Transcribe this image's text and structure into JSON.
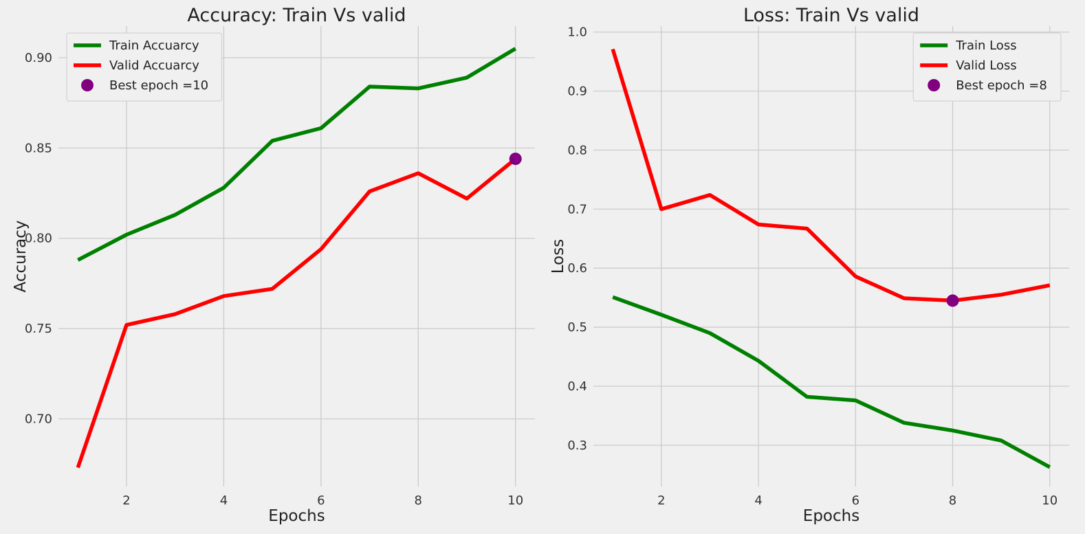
{
  "chart_data": [
    {
      "id": "accuracy",
      "type": "line",
      "title": "Accuracy: Train Vs valid",
      "xlabel": "Epochs",
      "ylabel": "Accuracy",
      "xlim": [
        0.6,
        10.4
      ],
      "ylim": [
        0.6625,
        0.9175
      ],
      "xticks": [
        2,
        4,
        6,
        8,
        10
      ],
      "yticks": [
        0.7,
        0.75,
        0.8,
        0.85,
        0.9
      ],
      "ytick_labels": [
        "0.70",
        "0.75",
        "0.80",
        "0.85",
        "0.90"
      ],
      "grid": true,
      "legend_position": "top-left",
      "x": [
        1,
        2,
        3,
        4,
        5,
        6,
        7,
        8,
        9,
        10
      ],
      "series": [
        {
          "name": "Train Accuarcy",
          "color": "#008000",
          "values": [
            0.788,
            0.802,
            0.813,
            0.828,
            0.854,
            0.861,
            0.884,
            0.883,
            0.889,
            0.905
          ]
        },
        {
          "name": "Valid Accuarcy",
          "color": "#ff0000",
          "values": [
            0.673,
            0.752,
            0.758,
            0.768,
            0.772,
            0.794,
            0.826,
            0.836,
            0.822,
            0.844
          ]
        }
      ],
      "marker": {
        "label": "Best epoch =10",
        "color": "#800080",
        "x": 10,
        "y": 0.844
      }
    },
    {
      "id": "loss",
      "type": "line",
      "title": "Loss: Train Vs valid",
      "xlabel": "Epochs",
      "ylabel": "Loss",
      "xlim": [
        0.6,
        10.4
      ],
      "ylim": [
        0.23,
        1.01
      ],
      "xticks": [
        2,
        4,
        6,
        8,
        10
      ],
      "yticks": [
        0.3,
        0.4,
        0.5,
        0.6,
        0.7,
        0.8,
        0.9,
        1.0
      ],
      "ytick_labels": [
        "0.3",
        "0.4",
        "0.5",
        "0.6",
        "0.7",
        "0.8",
        "0.9",
        "1.0"
      ],
      "grid": true,
      "legend_position": "top-right",
      "x": [
        1,
        2,
        3,
        4,
        5,
        6,
        7,
        8,
        9,
        10
      ],
      "series": [
        {
          "name": "Train Loss",
          "color": "#008000",
          "values": [
            0.551,
            0.521,
            0.49,
            0.443,
            0.382,
            0.376,
            0.338,
            0.325,
            0.308,
            0.263
          ]
        },
        {
          "name": "Valid Loss",
          "color": "#ff0000",
          "values": [
            0.971,
            0.7,
            0.724,
            0.674,
            0.667,
            0.586,
            0.549,
            0.545,
            0.555,
            0.571
          ]
        }
      ],
      "marker": {
        "label": "Best epoch =8",
        "color": "#800080",
        "x": 8,
        "y": 0.545
      }
    }
  ]
}
